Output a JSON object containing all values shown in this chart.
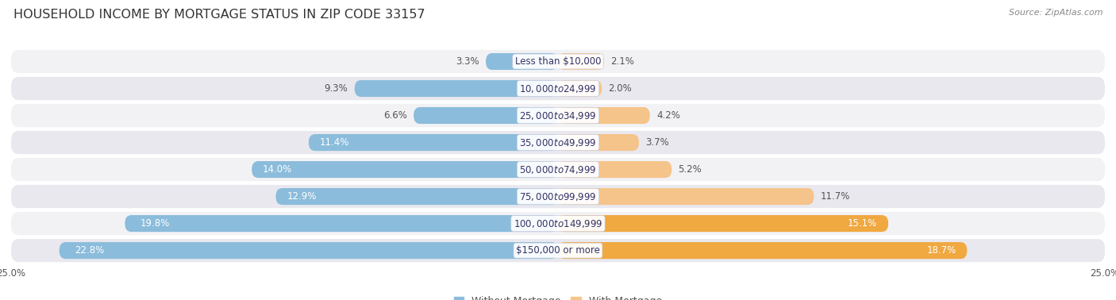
{
  "title": "HOUSEHOLD INCOME BY MORTGAGE STATUS IN ZIP CODE 33157",
  "source": "Source: ZipAtlas.com",
  "categories": [
    "Less than $10,000",
    "$10,000 to $24,999",
    "$25,000 to $34,999",
    "$35,000 to $49,999",
    "$50,000 to $74,999",
    "$75,000 to $99,999",
    "$100,000 to $149,999",
    "$150,000 or more"
  ],
  "without_mortgage": [
    3.3,
    9.3,
    6.6,
    11.4,
    14.0,
    12.9,
    19.8,
    22.8
  ],
  "with_mortgage": [
    2.1,
    2.0,
    4.2,
    3.7,
    5.2,
    11.7,
    15.1,
    18.7
  ],
  "color_without": "#8BBCDB",
  "color_with": "#F5C48A",
  "color_with_dark": "#F0A840",
  "xlim": 25.0,
  "row_bg_even": "#f2f2f5",
  "row_bg_odd": "#e8e8ee",
  "title_fontsize": 11.5,
  "label_fontsize": 8.5,
  "tick_fontsize": 8.5,
  "legend_fontsize": 9,
  "source_fontsize": 8
}
